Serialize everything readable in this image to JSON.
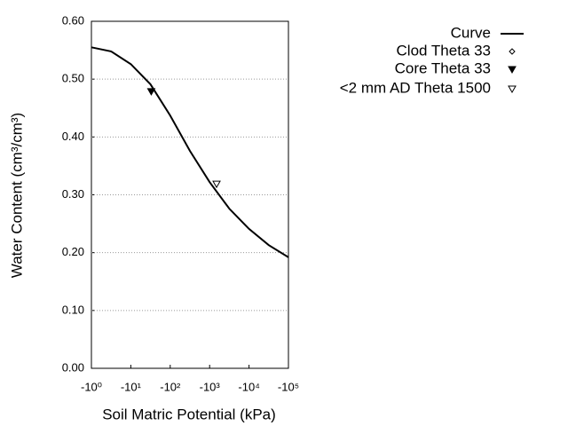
{
  "chart_data": {
    "type": "line",
    "x_label": "Soil Matric Potential (kPa)",
    "y_label": "Water Content (cm³/cm³)",
    "xscale": "log",
    "grid": true,
    "legend": "upper right",
    "xlim": [
      -1,
      -100000
    ],
    "xticks": [
      {
        "value": -1,
        "label": "-10⁰"
      },
      {
        "value": -10,
        "label": "-10¹"
      },
      {
        "value": -100,
        "label": "-10²"
      },
      {
        "value": -1000,
        "label": "-10³"
      },
      {
        "value": -10000,
        "label": "-10⁴"
      },
      {
        "value": -100000,
        "label": "-10⁵"
      }
    ],
    "ylim": [
      0,
      0.6
    ],
    "yticks": [
      {
        "value": 0,
        "label": "0.00"
      },
      {
        "value": 0.1,
        "label": "0.10"
      },
      {
        "value": 0.2,
        "label": "0.20"
      },
      {
        "value": 0.3,
        "label": "0.30"
      },
      {
        "value": 0.4,
        "label": "0.40"
      },
      {
        "value": 0.5,
        "label": "0.50"
      },
      {
        "value": 0.6,
        "label": "0.60"
      }
    ],
    "series": [
      {
        "name": "Curve",
        "color": "#000000",
        "marker": "line",
        "x": [
          -1,
          -3.16,
          -10,
          -31.6,
          -100,
          -316,
          -1000,
          -3162,
          -10000,
          -31623,
          -100000
        ],
        "values": [
          0.555,
          0.548,
          0.526,
          0.491,
          0.437,
          0.376,
          0.322,
          0.276,
          0.241,
          0.213,
          0.192
        ]
      },
      {
        "name": "Clod Theta 33",
        "color": "#000000",
        "marker": "diamond",
        "x": [],
        "values": []
      },
      {
        "name": "Core Theta 33",
        "color": "#000000",
        "marker": "filled-triangle-down",
        "x": [
          -33
        ],
        "values": [
          0.479
        ]
      },
      {
        "name": "<2 mm AD Theta 1500",
        "color": "#000000",
        "marker": "open-triangle-down",
        "x": [
          -1500
        ],
        "values": [
          0.319
        ]
      }
    ]
  }
}
